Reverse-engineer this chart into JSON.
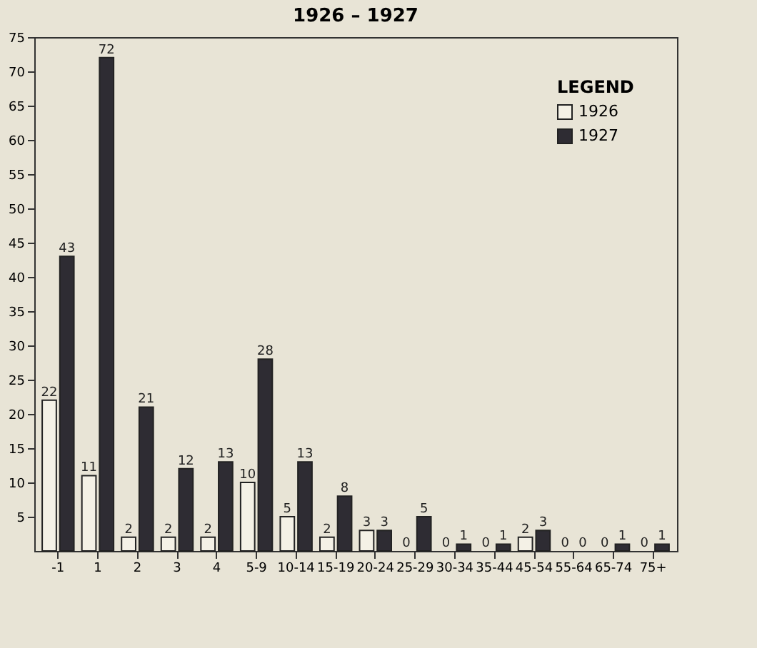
{
  "chart_data": {
    "type": "bar",
    "title": "1926 – 1927",
    "categories": [
      "-1",
      "1",
      "2",
      "3",
      "4",
      "5-9",
      "10-14",
      "15-19",
      "20-24",
      "25-29",
      "30-34",
      "35-44",
      "45-54",
      "55-64",
      "65-74",
      "75+"
    ],
    "series": [
      {
        "name": "1926",
        "color": "#f4f1e6",
        "values": [
          22,
          11,
          2,
          2,
          2,
          10,
          5,
          2,
          3,
          0,
          0,
          0,
          2,
          0,
          0,
          0
        ]
      },
      {
        "name": "1927",
        "color": "#2e2c33",
        "values": [
          43,
          72,
          21,
          12,
          13,
          28,
          13,
          8,
          3,
          5,
          1,
          1,
          3,
          0,
          1,
          1
        ]
      }
    ],
    "ylim": [
      0,
      75
    ],
    "yticks": [
      5,
      10,
      15,
      20,
      25,
      30,
      35,
      40,
      45,
      50,
      55,
      60,
      65,
      70,
      75
    ],
    "legend": "top right",
    "legend_title": "LEGEND",
    "data_labels": true,
    "grid": false
  }
}
